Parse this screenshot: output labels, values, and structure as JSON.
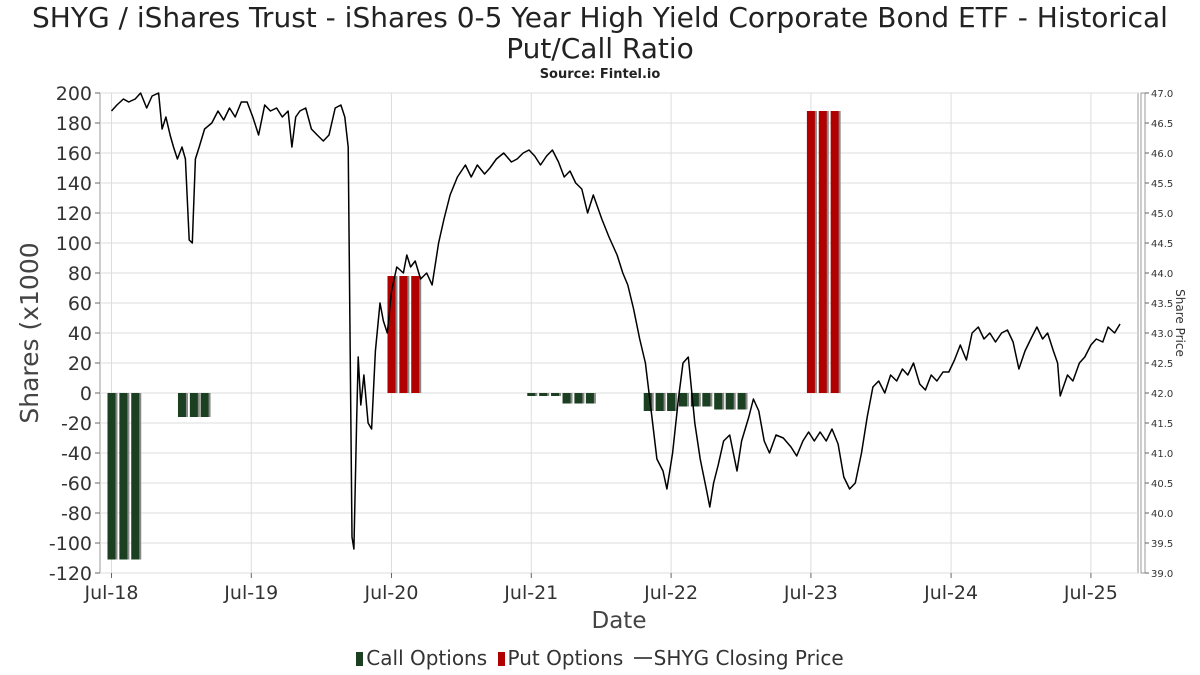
{
  "title_line1": "SHYG / iShares Trust - iShares 0-5 Year High Yield Corporate Bond ETF - Historical",
  "title_line2": "Put/Call Ratio",
  "subtitle": "Source: Fintel.io",
  "legend": {
    "call": "Call Options",
    "put": "Put Options",
    "price": "SHYG Closing Price"
  },
  "colors": {
    "call": "#1b3f21",
    "put": "#b00000",
    "price": "#000000",
    "bar_shadow": "#888888",
    "grid": "#dddddd"
  },
  "chart_data": {
    "type": "bar",
    "xlabel": "Date",
    "ylabel": "Shares (x1000",
    "ylabel_right": "Share Price",
    "ylim": [
      -120,
      200
    ],
    "ylim_right": [
      39.0,
      47.0
    ],
    "yticks": [
      200,
      180,
      160,
      140,
      120,
      100,
      80,
      60,
      40,
      20,
      0,
      -20,
      -40,
      -60,
      -80,
      -100,
      -120
    ],
    "yticks_right": [
      "47.0",
      "46.5",
      "46.0",
      "45.5",
      "45.0",
      "44.5",
      "44.0",
      "43.5",
      "43.0",
      "42.5",
      "42.0",
      "41.5",
      "41.0",
      "40.5",
      "40.0",
      "39.5",
      "39.0"
    ],
    "xlim": [
      "2018-06-01",
      "2025-11-01"
    ],
    "xticks": [
      {
        "date": "2018-07-01",
        "label": "Jul-18"
      },
      {
        "date": "2019-07-01",
        "label": "Jul-19"
      },
      {
        "date": "2020-07-01",
        "label": "Jul-20"
      },
      {
        "date": "2021-07-01",
        "label": "Jul-21"
      },
      {
        "date": "2022-07-01",
        "label": "Jul-22"
      },
      {
        "date": "2023-07-01",
        "label": "Jul-23"
      },
      {
        "date": "2024-07-01",
        "label": "Jul-24"
      },
      {
        "date": "2025-07-01",
        "label": "Jul-25"
      }
    ],
    "grid": true,
    "legend_position": "bottom",
    "series": [
      {
        "name": "Call Options",
        "kind": "bar",
        "points": [
          {
            "date": "2018-07-01",
            "value": -111
          },
          {
            "date": "2018-08-01",
            "value": -111
          },
          {
            "date": "2018-09-01",
            "value": -111
          },
          {
            "date": "2019-01-01",
            "value": -16
          },
          {
            "date": "2019-02-01",
            "value": -16
          },
          {
            "date": "2019-03-01",
            "value": -16
          },
          {
            "date": "2021-07-01",
            "value": -2
          },
          {
            "date": "2021-08-01",
            "value": -2
          },
          {
            "date": "2021-09-01",
            "value": -2
          },
          {
            "date": "2021-10-01",
            "value": -7
          },
          {
            "date": "2021-11-01",
            "value": -7
          },
          {
            "date": "2021-12-01",
            "value": -7
          },
          {
            "date": "2022-05-01",
            "value": -12
          },
          {
            "date": "2022-06-01",
            "value": -12
          },
          {
            "date": "2022-07-01",
            "value": -12
          },
          {
            "date": "2022-08-01",
            "value": -9
          },
          {
            "date": "2022-09-01",
            "value": -9
          },
          {
            "date": "2022-10-01",
            "value": -9
          },
          {
            "date": "2022-11-01",
            "value": -11
          },
          {
            "date": "2022-12-01",
            "value": -11
          },
          {
            "date": "2023-01-01",
            "value": -11
          }
        ]
      },
      {
        "name": "Put Options",
        "kind": "bar",
        "points": [
          {
            "date": "2020-07-01",
            "value": 78
          },
          {
            "date": "2020-08-01",
            "value": 78
          },
          {
            "date": "2020-09-01",
            "value": 78
          },
          {
            "date": "2023-07-01",
            "value": 188
          },
          {
            "date": "2023-08-01",
            "value": 188
          },
          {
            "date": "2023-09-01",
            "value": 188
          }
        ]
      },
      {
        "name": "SHYG Closing Price",
        "kind": "line",
        "axis": "right",
        "points": [
          [
            "2018-07-01",
            46.7
          ],
          [
            "2018-07-15",
            46.8
          ],
          [
            "2018-08-01",
            46.9
          ],
          [
            "2018-08-15",
            46.85
          ],
          [
            "2018-09-01",
            46.9
          ],
          [
            "2018-09-15",
            47.0
          ],
          [
            "2018-10-01",
            46.75
          ],
          [
            "2018-10-15",
            46.95
          ],
          [
            "2018-11-01",
            47.0
          ],
          [
            "2018-11-10",
            46.4
          ],
          [
            "2018-11-20",
            46.6
          ],
          [
            "2018-12-01",
            46.3
          ],
          [
            "2018-12-10",
            46.1
          ],
          [
            "2018-12-20",
            45.9
          ],
          [
            "2019-01-01",
            46.1
          ],
          [
            "2019-01-10",
            45.9
          ],
          [
            "2019-01-20",
            44.55
          ],
          [
            "2019-01-28",
            44.5
          ],
          [
            "2019-02-05",
            45.9
          ],
          [
            "2019-02-15",
            46.1
          ],
          [
            "2019-03-01",
            46.4
          ],
          [
            "2019-03-20",
            46.5
          ],
          [
            "2019-04-05",
            46.7
          ],
          [
            "2019-04-20",
            46.55
          ],
          [
            "2019-05-05",
            46.75
          ],
          [
            "2019-05-20",
            46.6
          ],
          [
            "2019-06-05",
            46.85
          ],
          [
            "2019-06-20",
            46.85
          ],
          [
            "2019-07-05",
            46.6
          ],
          [
            "2019-07-20",
            46.3
          ],
          [
            "2019-08-05",
            46.8
          ],
          [
            "2019-08-20",
            46.7
          ],
          [
            "2019-09-05",
            46.75
          ],
          [
            "2019-09-20",
            46.6
          ],
          [
            "2019-10-05",
            46.7
          ],
          [
            "2019-10-15",
            46.1
          ],
          [
            "2019-10-25",
            46.6
          ],
          [
            "2019-11-05",
            46.7
          ],
          [
            "2019-11-20",
            46.75
          ],
          [
            "2019-12-05",
            46.4
          ],
          [
            "2019-12-20",
            46.3
          ],
          [
            "2020-01-05",
            46.2
          ],
          [
            "2020-01-20",
            46.3
          ],
          [
            "2020-02-05",
            46.75
          ],
          [
            "2020-02-20",
            46.8
          ],
          [
            "2020-03-01",
            46.6
          ],
          [
            "2020-03-10",
            46.1
          ],
          [
            "2020-03-20",
            39.6
          ],
          [
            "2020-03-25",
            39.4
          ],
          [
            "2020-04-01",
            41.5
          ],
          [
            "2020-04-05",
            42.6
          ],
          [
            "2020-04-12",
            41.8
          ],
          [
            "2020-04-20",
            42.3
          ],
          [
            "2020-05-01",
            41.5
          ],
          [
            "2020-05-10",
            41.4
          ],
          [
            "2020-05-20",
            42.7
          ],
          [
            "2020-06-01",
            43.5
          ],
          [
            "2020-06-10",
            43.2
          ],
          [
            "2020-06-20",
            43.0
          ],
          [
            "2020-07-01",
            43.7
          ],
          [
            "2020-07-15",
            44.1
          ],
          [
            "2020-08-01",
            44.0
          ],
          [
            "2020-08-10",
            44.3
          ],
          [
            "2020-08-20",
            44.1
          ],
          [
            "2020-09-01",
            44.2
          ],
          [
            "2020-09-15",
            43.9
          ],
          [
            "2020-10-01",
            44.0
          ],
          [
            "2020-10-15",
            43.8
          ],
          [
            "2020-11-01",
            44.5
          ],
          [
            "2020-11-15",
            44.9
          ],
          [
            "2020-12-01",
            45.3
          ],
          [
            "2020-12-20",
            45.6
          ],
          [
            "2021-01-10",
            45.8
          ],
          [
            "2021-01-25",
            45.6
          ],
          [
            "2021-02-10",
            45.8
          ],
          [
            "2021-03-01",
            45.65
          ],
          [
            "2021-03-15",
            45.75
          ],
          [
            "2021-04-01",
            45.9
          ],
          [
            "2021-04-20",
            46.0
          ],
          [
            "2021-05-10",
            45.85
          ],
          [
            "2021-05-25",
            45.9
          ],
          [
            "2021-06-10",
            46.0
          ],
          [
            "2021-06-25",
            46.05
          ],
          [
            "2021-07-10",
            45.95
          ],
          [
            "2021-07-25",
            45.8
          ],
          [
            "2021-08-10",
            45.95
          ],
          [
            "2021-08-25",
            46.05
          ],
          [
            "2021-09-10",
            45.85
          ],
          [
            "2021-09-25",
            45.6
          ],
          [
            "2021-10-10",
            45.7
          ],
          [
            "2021-10-25",
            45.5
          ],
          [
            "2021-11-10",
            45.4
          ],
          [
            "2021-11-25",
            45.0
          ],
          [
            "2021-12-10",
            45.3
          ],
          [
            "2022-01-01",
            44.9
          ],
          [
            "2022-01-20",
            44.6
          ],
          [
            "2022-02-10",
            44.3
          ],
          [
            "2022-02-25",
            44.0
          ],
          [
            "2022-03-10",
            43.8
          ],
          [
            "2022-03-25",
            43.4
          ],
          [
            "2022-04-10",
            42.9
          ],
          [
            "2022-04-25",
            42.5
          ],
          [
            "2022-05-10",
            41.7
          ],
          [
            "2022-05-25",
            40.9
          ],
          [
            "2022-06-10",
            40.7
          ],
          [
            "2022-06-20",
            40.4
          ],
          [
            "2022-07-05",
            41.0
          ],
          [
            "2022-07-20",
            41.9
          ],
          [
            "2022-08-01",
            42.5
          ],
          [
            "2022-08-15",
            42.6
          ],
          [
            "2022-09-01",
            41.5
          ],
          [
            "2022-09-15",
            40.9
          ],
          [
            "2022-10-01",
            40.4
          ],
          [
            "2022-10-10",
            40.1
          ],
          [
            "2022-10-20",
            40.5
          ],
          [
            "2022-11-01",
            40.8
          ],
          [
            "2022-11-15",
            41.2
          ],
          [
            "2022-12-01",
            41.3
          ],
          [
            "2022-12-20",
            40.7
          ],
          [
            "2023-01-01",
            41.2
          ],
          [
            "2023-01-20",
            41.6
          ],
          [
            "2023-02-01",
            41.9
          ],
          [
            "2023-02-15",
            41.7
          ],
          [
            "2023-03-01",
            41.2
          ],
          [
            "2023-03-15",
            41.0
          ],
          [
            "2023-04-01",
            41.3
          ],
          [
            "2023-04-20",
            41.25
          ],
          [
            "2023-05-10",
            41.1
          ],
          [
            "2023-05-25",
            40.95
          ],
          [
            "2023-06-10",
            41.2
          ],
          [
            "2023-06-25",
            41.35
          ],
          [
            "2023-07-10",
            41.2
          ],
          [
            "2023-07-25",
            41.35
          ],
          [
            "2023-08-10",
            41.2
          ],
          [
            "2023-08-25",
            41.4
          ],
          [
            "2023-09-10",
            41.15
          ],
          [
            "2023-09-25",
            40.6
          ],
          [
            "2023-10-10",
            40.4
          ],
          [
            "2023-10-25",
            40.5
          ],
          [
            "2023-11-10",
            41.0
          ],
          [
            "2023-11-25",
            41.6
          ],
          [
            "2023-12-10",
            42.1
          ],
          [
            "2023-12-25",
            42.2
          ],
          [
            "2024-01-10",
            42.0
          ],
          [
            "2024-01-25",
            42.3
          ],
          [
            "2024-02-10",
            42.2
          ],
          [
            "2024-02-25",
            42.4
          ],
          [
            "2024-03-10",
            42.3
          ],
          [
            "2024-03-25",
            42.5
          ],
          [
            "2024-04-10",
            42.15
          ],
          [
            "2024-04-25",
            42.05
          ],
          [
            "2024-05-10",
            42.3
          ],
          [
            "2024-05-25",
            42.2
          ],
          [
            "2024-06-10",
            42.35
          ],
          [
            "2024-06-25",
            42.35
          ],
          [
            "2024-07-10",
            42.55
          ],
          [
            "2024-07-25",
            42.8
          ],
          [
            "2024-08-10",
            42.55
          ],
          [
            "2024-08-25",
            43.0
          ],
          [
            "2024-09-10",
            43.1
          ],
          [
            "2024-09-25",
            42.9
          ],
          [
            "2024-10-10",
            43.0
          ],
          [
            "2024-10-25",
            42.85
          ],
          [
            "2024-11-10",
            43.0
          ],
          [
            "2024-11-25",
            43.05
          ],
          [
            "2024-12-10",
            42.85
          ],
          [
            "2024-12-25",
            42.4
          ],
          [
            "2025-01-10",
            42.7
          ],
          [
            "2025-01-25",
            42.9
          ],
          [
            "2025-02-10",
            43.1
          ],
          [
            "2025-02-25",
            42.9
          ],
          [
            "2025-03-10",
            43.0
          ],
          [
            "2025-03-25",
            42.7
          ],
          [
            "2025-04-05",
            42.5
          ],
          [
            "2025-04-12",
            41.95
          ],
          [
            "2025-04-20",
            42.1
          ],
          [
            "2025-05-01",
            42.3
          ],
          [
            "2025-05-15",
            42.2
          ],
          [
            "2025-06-01",
            42.5
          ],
          [
            "2025-06-15",
            42.6
          ],
          [
            "2025-07-01",
            42.8
          ],
          [
            "2025-07-15",
            42.9
          ],
          [
            "2025-08-01",
            42.85
          ],
          [
            "2025-08-15",
            43.1
          ],
          [
            "2025-09-01",
            43.0
          ],
          [
            "2025-09-15",
            43.15
          ]
        ]
      }
    ]
  }
}
